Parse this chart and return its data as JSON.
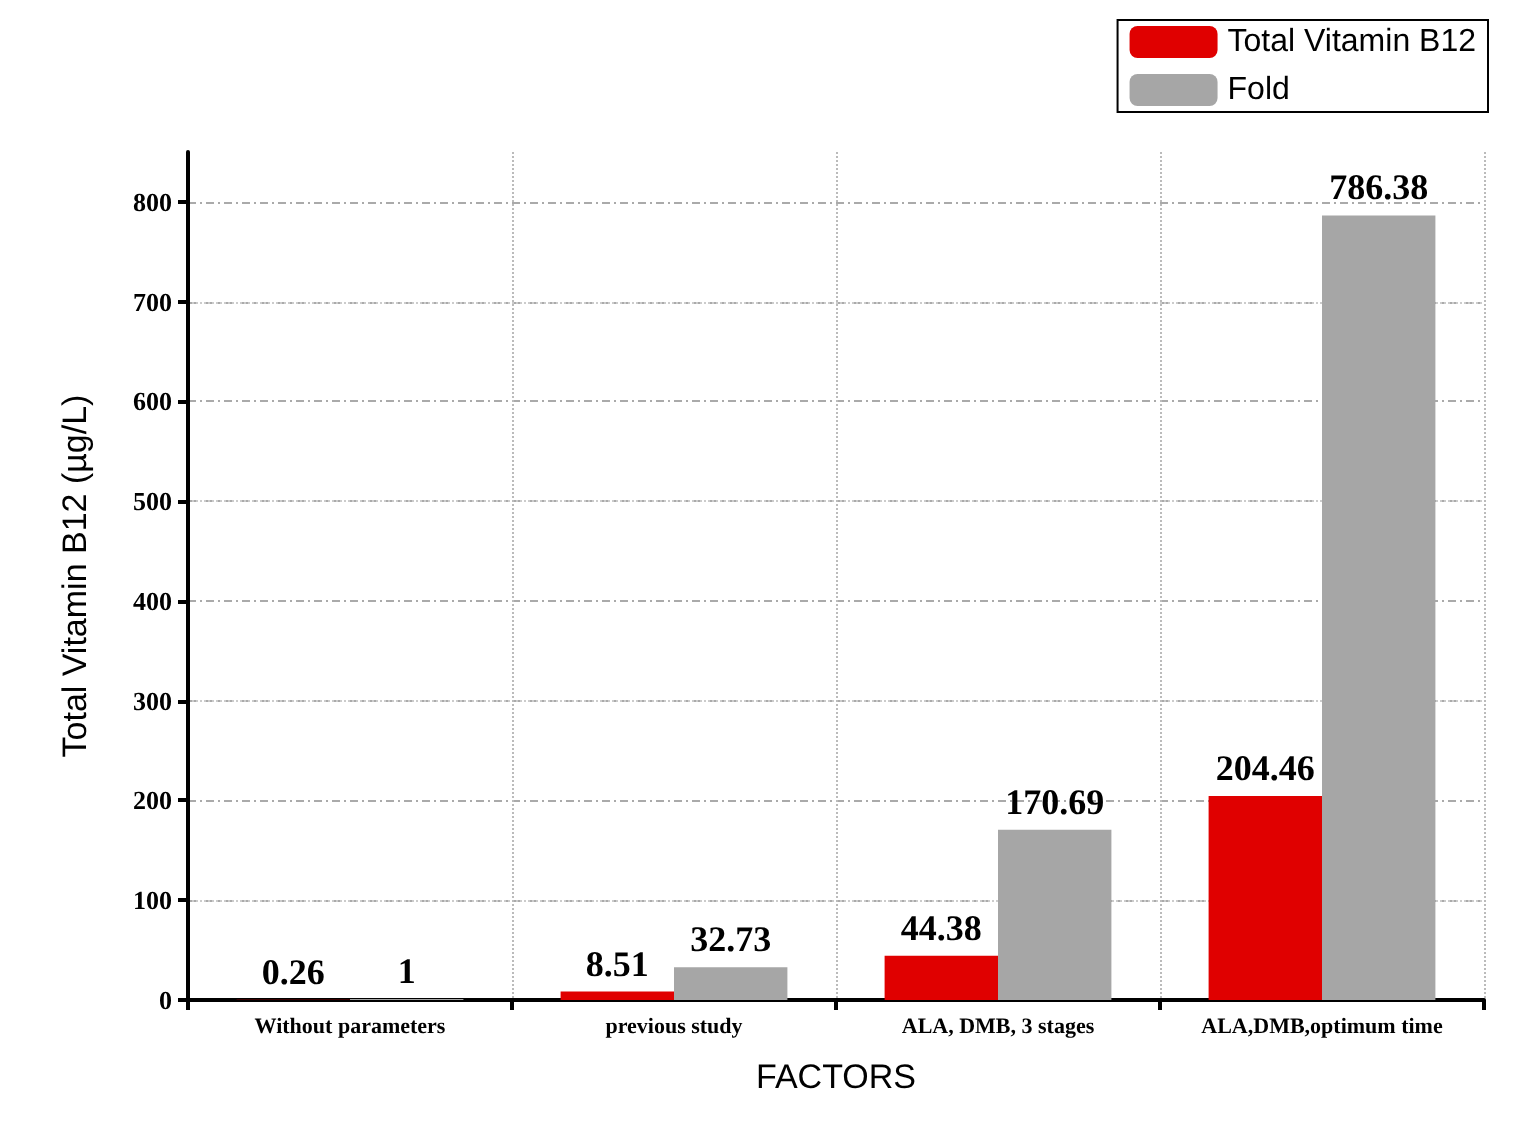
{
  "chart_data": {
    "type": "bar",
    "xlabel": "FACTORS",
    "ylabel": "Total Vitamin B12 (µg/L)",
    "categories": [
      "Without parameters",
      "previous study",
      "ALA, DMB, 3 stages",
      "ALA,DMB,optimum time"
    ],
    "series": [
      {
        "name": "Total Vitamin B12",
        "color": "#e00000",
        "values": [
          0.26,
          8.51,
          44.38,
          204.46
        ]
      },
      {
        "name": "Fold",
        "color": "#a6a6a6",
        "values": [
          1,
          32.73,
          170.69,
          786.38
        ]
      }
    ],
    "ylim": [
      0,
      850
    ],
    "yticks": [
      0,
      100,
      200,
      300,
      400,
      500,
      600,
      700,
      800
    ],
    "grid": true,
    "legend": "top right",
    "data_labels": true
  }
}
